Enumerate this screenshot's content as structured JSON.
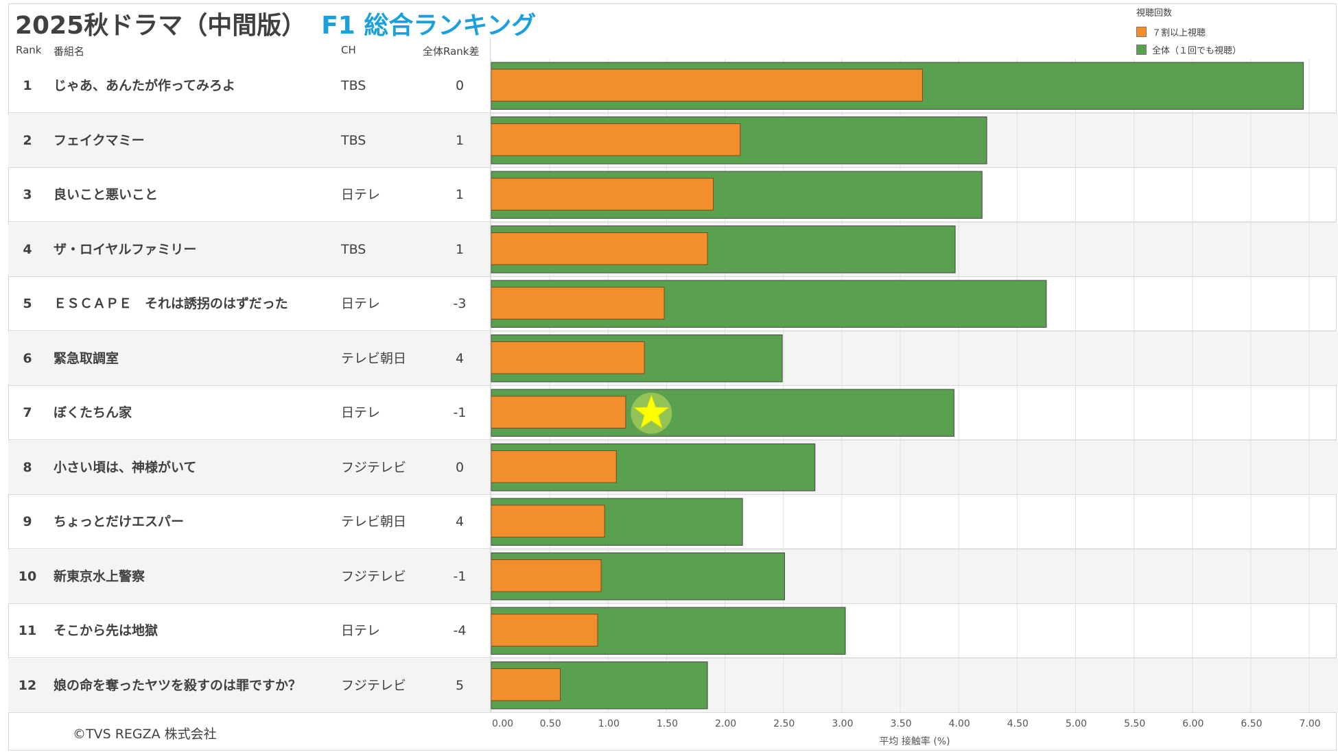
{
  "title": {
    "main": "2025秋ドラマ（中間版）",
    "highlight": "F1 総合ランキング"
  },
  "headers": {
    "rank": "Rank",
    "program": "番組名",
    "channel": "CH",
    "rank_diff": "全体Rank差"
  },
  "rows": [
    {
      "rank": "1",
      "program": "じゃあ、あんたが作ってみろよ",
      "channel": "TBS",
      "rank_diff": "0"
    },
    {
      "rank": "2",
      "program": "フェイクマミー",
      "channel": "TBS",
      "rank_diff": "1"
    },
    {
      "rank": "3",
      "program": "良いこと悪いこと",
      "channel": "日テレ",
      "rank_diff": "1"
    },
    {
      "rank": "4",
      "program": "ザ・ロイヤルファミリー",
      "channel": "TBS",
      "rank_diff": "1"
    },
    {
      "rank": "5",
      "program": "ＥＳＣＡＰＥ　それは誘拐のはずだった",
      "channel": "日テレ",
      "rank_diff": "-3"
    },
    {
      "rank": "6",
      "program": "緊急取調室",
      "channel": "テレビ朝日",
      "rank_diff": "4"
    },
    {
      "rank": "7",
      "program": "ぼくたちん家",
      "channel": "日テレ",
      "rank_diff": "-1"
    },
    {
      "rank": "8",
      "program": "小さい頃は、神様がいて",
      "channel": "フジテレビ",
      "rank_diff": "0"
    },
    {
      "rank": "9",
      "program": "ちょっとだけエスパー",
      "channel": "テレビ朝日",
      "rank_diff": "4"
    },
    {
      "rank": "10",
      "program": "新東京水上警察",
      "channel": "フジテレビ",
      "rank_diff": "-1"
    },
    {
      "rank": "11",
      "program": "そこから先は地獄",
      "channel": "日テレ",
      "rank_diff": "-4"
    },
    {
      "rank": "12",
      "program": "娘の命を奪ったヤツを殺すのは罪ですか？",
      "channel": "フジテレビ",
      "rank_diff": "5"
    }
  ],
  "legend": {
    "title": "視聴回数",
    "items": [
      {
        "label": "７割以上視聴",
        "color": "#f28e2b"
      },
      {
        "label": "全体（１回でも視聴）",
        "color": "#59a14f"
      }
    ]
  },
  "copyright": "©TVS REGZA 株式会社",
  "chart_data": {
    "type": "bar",
    "orientation": "horizontal",
    "categories": [
      "じゃあ、あんたが作ってみろよ",
      "フェイクマミー",
      "良いこと悪いこと",
      "ザ・ロイヤルファミリー",
      "ＥＳＣＡＰＥ　それは誘拐のはずだった",
      "緊急取調室",
      "ぼくたちん家",
      "小さい頃は、神様がいて",
      "ちょっとだけエスパー",
      "新東京水上警察",
      "そこから先は地獄",
      "娘の命を奪ったヤツを殺すのは罪ですか？"
    ],
    "series": [
      {
        "name": "全体（１回でも視聴）",
        "color": "#59a14f",
        "values": [
          6.95,
          4.24,
          4.2,
          3.97,
          4.75,
          2.49,
          3.96,
          2.77,
          2.15,
          2.51,
          3.03,
          1.85
        ]
      },
      {
        "name": "７割以上視聴",
        "color": "#f28e2b",
        "values": [
          3.69,
          2.13,
          1.9,
          1.85,
          1.48,
          1.31,
          1.15,
          1.07,
          0.97,
          0.94,
          0.91,
          0.59
        ]
      }
    ],
    "xlabel": "平均 接触率 (%)",
    "xlim": [
      0,
      7.25
    ],
    "xticks": [
      "0.00",
      "0.50",
      "1.00",
      "1.50",
      "2.00",
      "2.50",
      "3.00",
      "3.50",
      "4.00",
      "4.50",
      "5.00",
      "5.50",
      "6.00",
      "6.50",
      "7.00"
    ],
    "grid": true,
    "highlight": {
      "category": "ぼくたちん家",
      "marker": "star",
      "color": "#ffff00"
    }
  }
}
